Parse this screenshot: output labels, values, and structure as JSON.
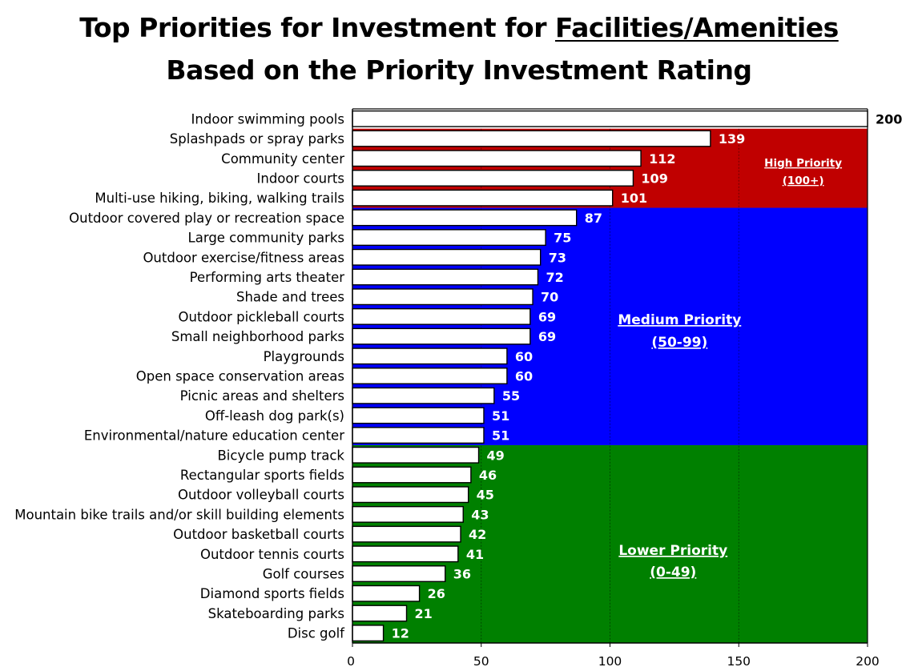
{
  "chart_data": {
    "type": "bar",
    "orientation": "horizontal",
    "title": {
      "line1_prefix": "Top Priorities for Investment for ",
      "line1_underlined": "Facilities/Amenities",
      "line2": "Based on the Priority Investment Rating"
    },
    "xlim": [
      0,
      200
    ],
    "xticks": [
      0,
      50,
      100,
      150,
      200
    ],
    "gridlines": [
      50,
      100,
      150
    ],
    "categories": [
      "Indoor swimming pools",
      "Splashpads or spray parks",
      "Community center",
      "Indoor courts",
      "Multi-use hiking, biking, walking trails",
      "Outdoor covered play or recreation space",
      "Large community parks",
      "Outdoor exercise/fitness areas",
      "Performing arts theater",
      "Shade and trees",
      "Outdoor pickleball courts",
      "Small neighborhood parks",
      "Playgrounds",
      "Open space conservation areas",
      "Picnic areas and shelters",
      "Off-leash dog park(s)",
      "Environmental/nature education center",
      "Bicycle pump track",
      "Rectangular sports fields",
      "Outdoor volleyball courts",
      "Mountain bike trails and/or skill building elements",
      "Outdoor basketball courts",
      "Outdoor tennis courts",
      "Golf courses",
      "Diamond sports fields",
      "Skateboarding parks",
      "Disc golf"
    ],
    "values": [
      200,
      139,
      112,
      109,
      101,
      87,
      75,
      73,
      72,
      70,
      69,
      69,
      60,
      60,
      55,
      51,
      51,
      49,
      46,
      45,
      43,
      42,
      41,
      36,
      26,
      21,
      12
    ],
    "bands": [
      {
        "name": "High Priority",
        "range_label": "(100+)",
        "color": "#c00000",
        "start_index": 1,
        "end_index": 4
      },
      {
        "name": "Medium Priority",
        "range_label": "(50-99)",
        "color": "#0000ff",
        "start_index": 5,
        "end_index": 16
      },
      {
        "name": "Lower Priority",
        "range_label": "(0-49)",
        "color": "#008000",
        "start_index": 17,
        "end_index": 26
      }
    ]
  }
}
